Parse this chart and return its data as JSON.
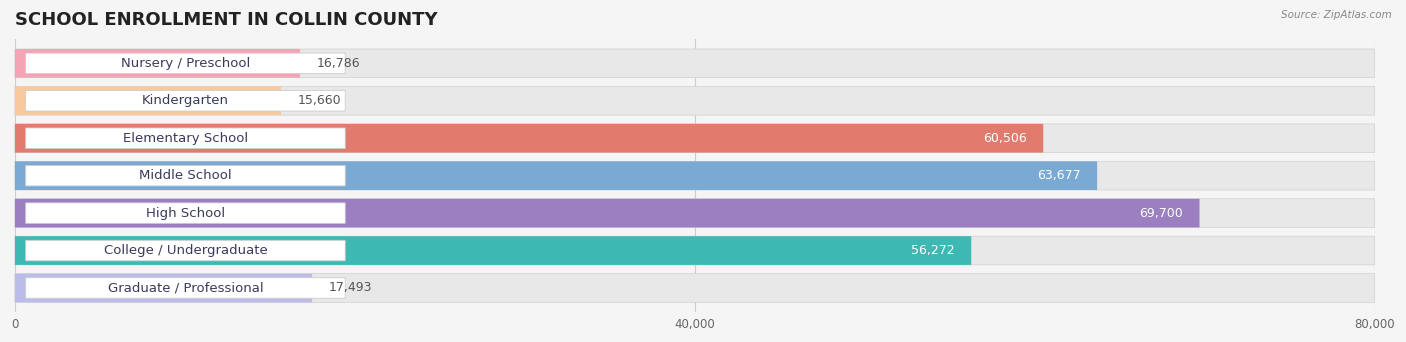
{
  "title": "SCHOOL ENROLLMENT IN COLLIN COUNTY",
  "source": "Source: ZipAtlas.com",
  "categories": [
    "Nursery / Preschool",
    "Kindergarten",
    "Elementary School",
    "Middle School",
    "High School",
    "College / Undergraduate",
    "Graduate / Professional"
  ],
  "values": [
    16786,
    15660,
    60506,
    63677,
    69700,
    56272,
    17493
  ],
  "bar_colors": [
    "#f4a4b5",
    "#f8c99c",
    "#e07b6e",
    "#7aaad4",
    "#9b7fc0",
    "#3db8b2",
    "#bcbce8"
  ],
  "value_label_colors": [
    "#555555",
    "#555555",
    "#ffffff",
    "#ffffff",
    "#ffffff",
    "#ffffff",
    "#555555"
  ],
  "xlim": [
    0,
    80000
  ],
  "xticks": [
    0,
    40000,
    80000
  ],
  "xtick_labels": [
    "0",
    "40,000",
    "80,000"
  ],
  "background_color": "#f5f5f5",
  "bar_track_color": "#e8e8e8",
  "title_fontsize": 13,
  "label_fontsize": 9.5,
  "value_fontsize": 9
}
